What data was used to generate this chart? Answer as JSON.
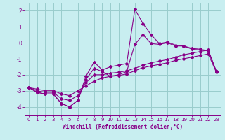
{
  "bg_color": "#c8eef0",
  "line_color": "#880088",
  "grid_color": "#99cccc",
  "xlabel": "Windchill (Refroidissement éolien,°C)",
  "hours": [
    0,
    1,
    2,
    3,
    4,
    5,
    6,
    7,
    8,
    9,
    10,
    11,
    12,
    13,
    14,
    15,
    16,
    17,
    18,
    19,
    20,
    21,
    22,
    23
  ],
  "series1": [
    -2.8,
    -3.1,
    -3.2,
    -3.2,
    -3.8,
    -4.0,
    -3.6,
    -2.1,
    -1.2,
    -1.7,
    -1.5,
    -1.4,
    -1.3,
    2.1,
    1.2,
    0.5,
    -0.05,
    0.05,
    -0.15,
    -0.2,
    -0.4,
    -0.45,
    -0.5,
    -1.8
  ],
  "series2": [
    -2.8,
    -3.1,
    -3.2,
    -3.2,
    -3.8,
    -4.0,
    -3.6,
    -2.3,
    -1.6,
    -1.8,
    -2.1,
    -2.0,
    -1.8,
    -0.1,
    0.5,
    -0.05,
    -0.1,
    0.0,
    -0.2,
    -0.2,
    -0.35,
    -0.4,
    -0.5,
    -1.8
  ],
  "series3": [
    -2.8,
    -3.0,
    -3.1,
    -3.1,
    -3.5,
    -3.6,
    -3.3,
    -2.5,
    -2.0,
    -2.0,
    -1.9,
    -1.85,
    -1.75,
    -1.6,
    -1.4,
    -1.25,
    -1.15,
    -1.05,
    -0.9,
    -0.75,
    -0.65,
    -0.55,
    -0.45,
    -1.8
  ],
  "series4": [
    -2.8,
    -2.9,
    -3.0,
    -3.0,
    -3.2,
    -3.3,
    -3.0,
    -2.7,
    -2.4,
    -2.2,
    -2.1,
    -2.05,
    -1.95,
    -1.75,
    -1.55,
    -1.45,
    -1.35,
    -1.25,
    -1.1,
    -1.0,
    -0.9,
    -0.8,
    -0.7,
    -1.85
  ],
  "ylim": [
    -4.5,
    2.5
  ],
  "xlim": [
    -0.5,
    23.5
  ],
  "yticks": [
    -4,
    -3,
    -2,
    -1,
    0,
    1,
    2
  ],
  "xticks": [
    0,
    1,
    2,
    3,
    4,
    5,
    6,
    7,
    8,
    9,
    10,
    11,
    12,
    13,
    14,
    15,
    16,
    17,
    18,
    19,
    20,
    21,
    22,
    23
  ],
  "tick_fontsize": 5.0,
  "xlabel_fontsize": 5.5
}
